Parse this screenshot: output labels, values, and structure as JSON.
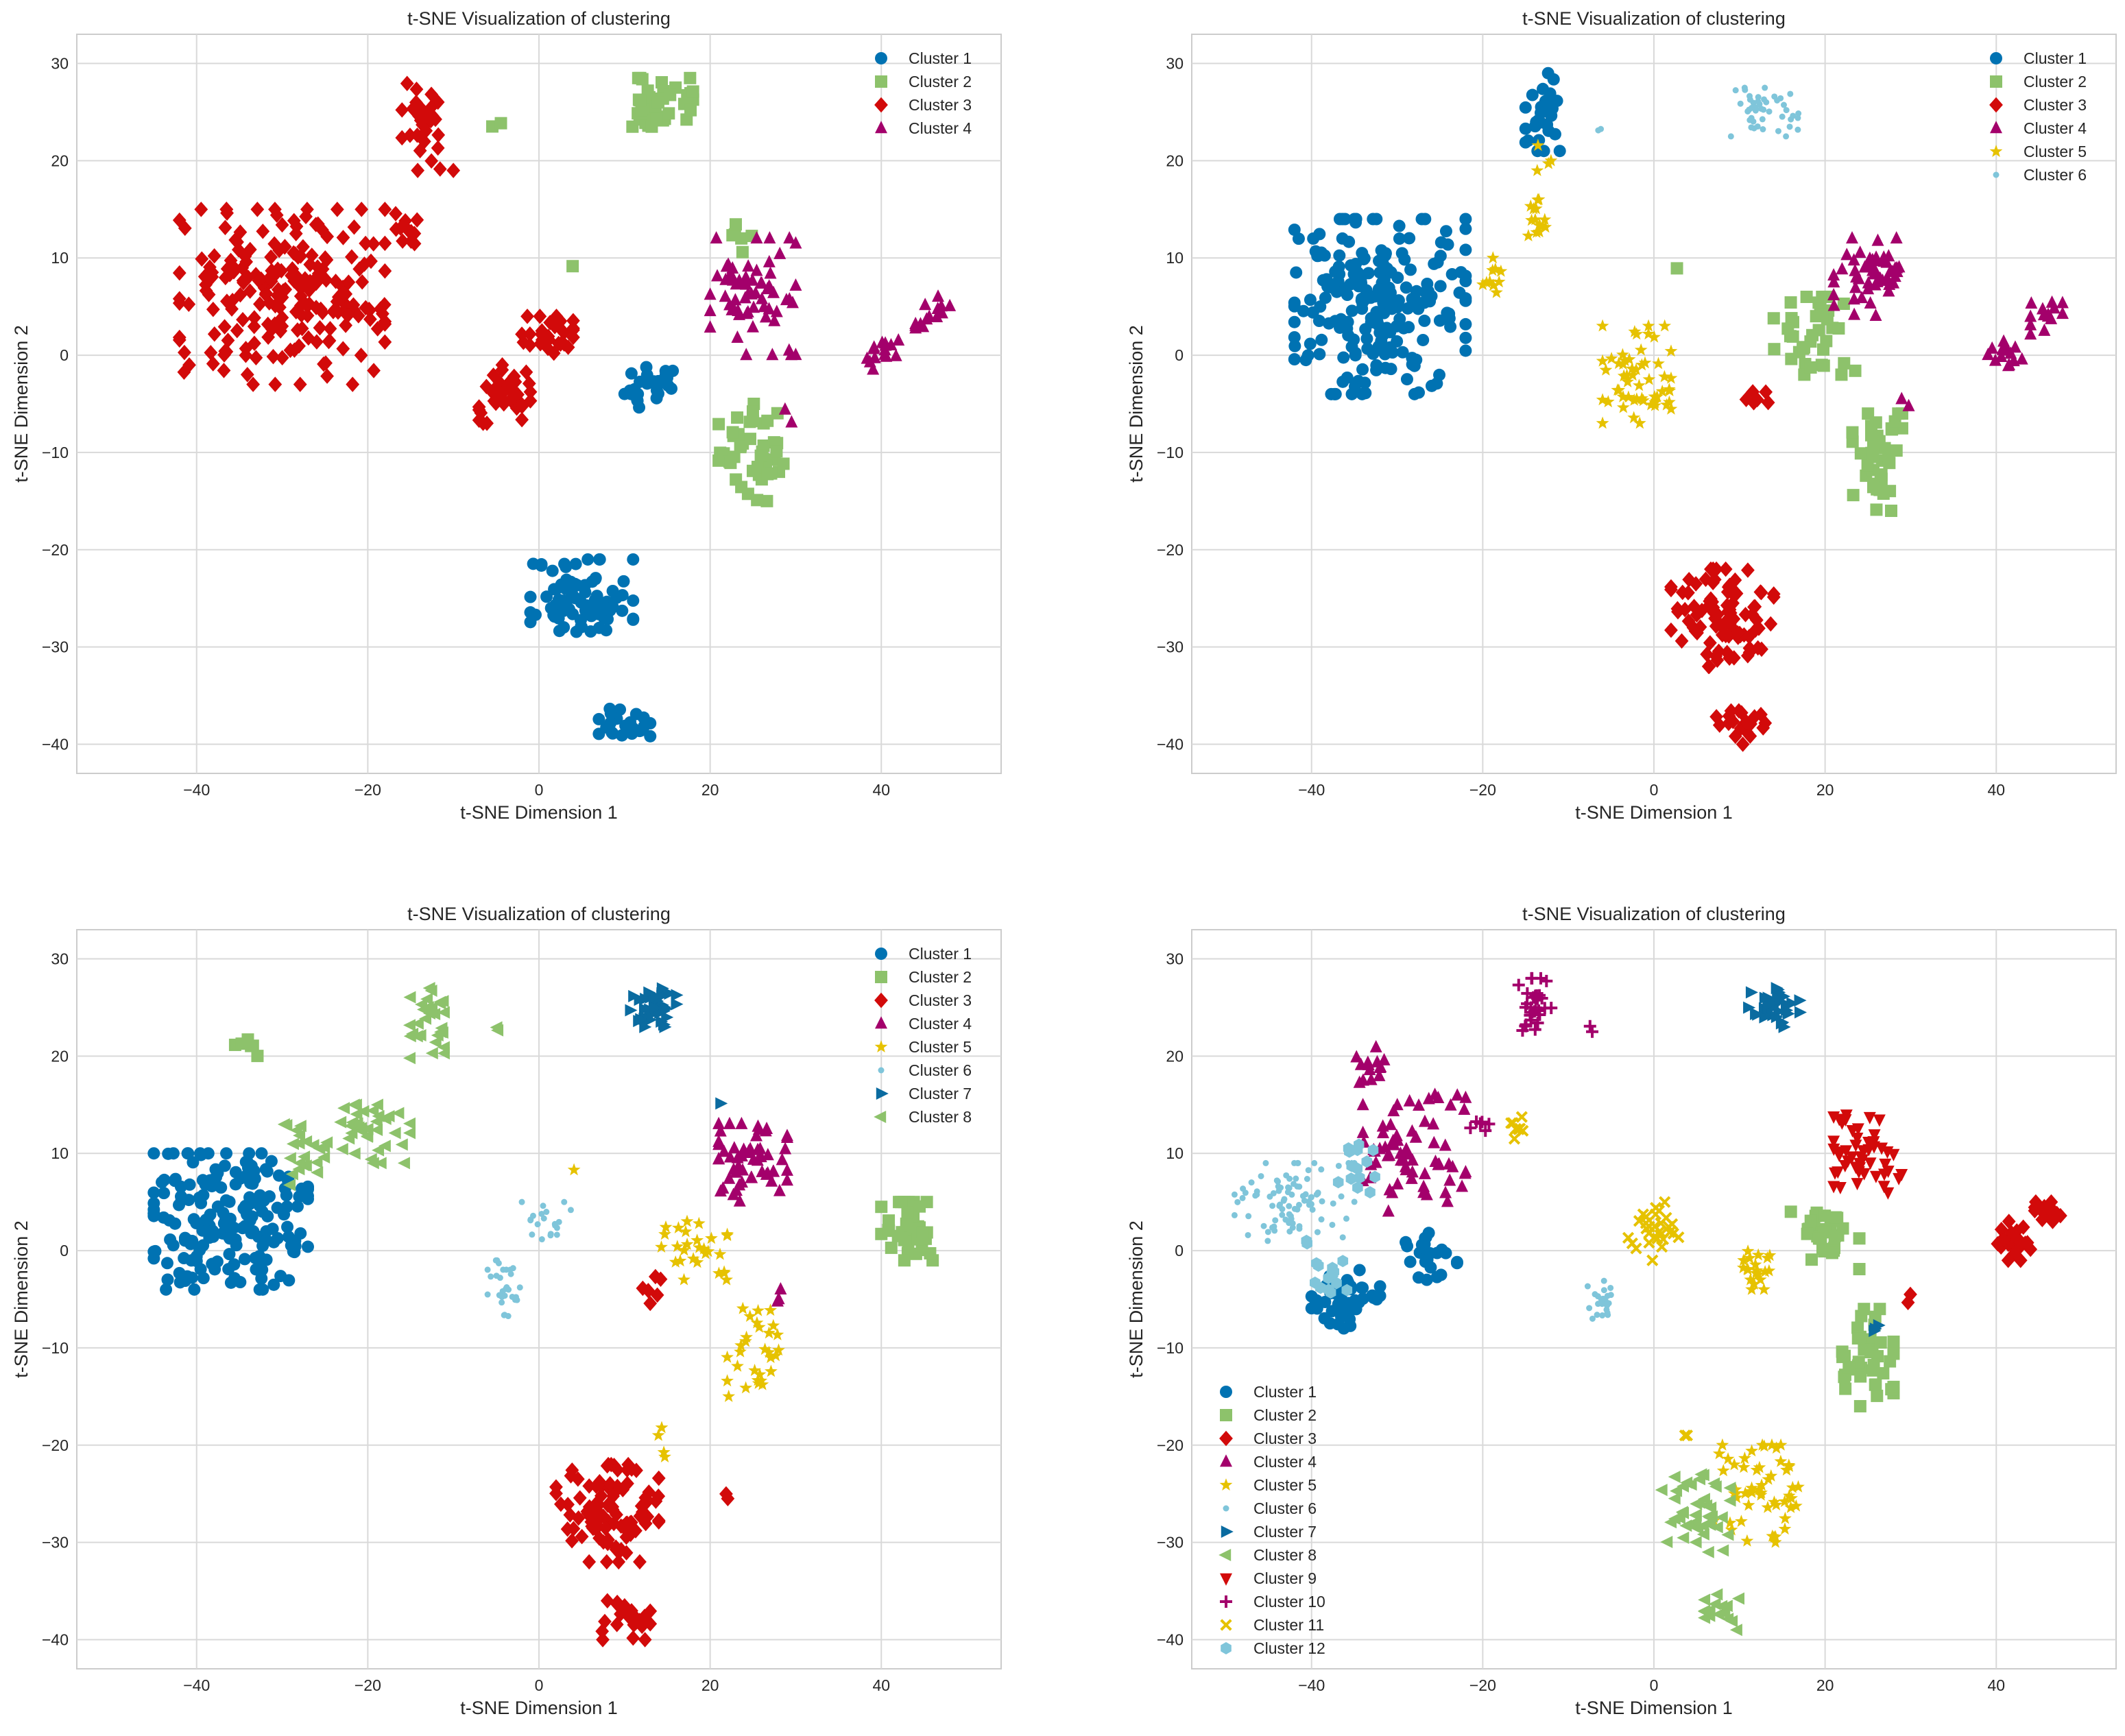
{
  "figure": {
    "description_layout": "2x2 grid of t-SNE scatter plots"
  },
  "palette": {
    "Cluster 1": "#0072B2",
    "Cluster 2": "#8DC26B",
    "Cluster 3": "#D20A0A",
    "Cluster 4": "#A3006B",
    "Cluster 5": "#E6C200",
    "Cluster 6": "#7FC5DA",
    "Cluster 7": "#0A6BA0",
    "Cluster 8": "#8DC26B",
    "Cluster 9": "#D20A0A",
    "Cluster 10": "#A3006B",
    "Cluster 11": "#E6C200",
    "Cluster 12": "#7FC5DA"
  },
  "chart_data": [
    {
      "type": "scatter",
      "title": "t-SNE Visualization of clustering",
      "xlabel": "t-SNE Dimension 1",
      "ylabel": "t-SNE Dimension 2",
      "xlim": [
        -54,
        54
      ],
      "ylim": [
        -43,
        33
      ],
      "xticks": [
        -40,
        -20,
        0,
        20,
        40
      ],
      "yticks": [
        -40,
        -30,
        -20,
        -10,
        0,
        10,
        20,
        30
      ],
      "xtick_labels": [
        "−40",
        "−20",
        "0",
        "20",
        "40"
      ],
      "ytick_labels": [
        "−40",
        "−30",
        "−20",
        "−10",
        "0",
        "10",
        "20",
        "30"
      ],
      "grid": true,
      "legend_position": "top-right",
      "series": [
        {
          "name": "Cluster 1",
          "marker": "circle",
          "color": "#0072B2",
          "clusters": [
            [
              13,
              -3,
              3,
              2.5,
              25
            ],
            [
              5,
              -25,
              6,
              4,
              80
            ],
            [
              10,
              -38,
              3,
              2,
              22
            ]
          ]
        },
        {
          "name": "Cluster 2",
          "marker": "square",
          "color": "#8DC26B",
          "clusters": [
            [
              14,
              26,
              4,
              2.5,
              45
            ],
            [
              25,
              -10,
              4,
              5,
              45
            ],
            [
              24,
              12,
              3,
              2,
              6
            ],
            [
              -5,
              24,
              1,
              0.5,
              2
            ],
            [
              4,
              9,
              0.5,
              0.5,
              1
            ]
          ]
        },
        {
          "name": "Cluster 3",
          "marker": "diamond",
          "color": "#D20A0A",
          "clusters": [
            [
              -30,
              6,
              12,
              9,
              220
            ],
            [
              -13,
              24,
              3,
              5,
              30
            ],
            [
              -4,
              -4,
              3,
              3,
              40
            ],
            [
              1,
              2,
              3,
              2,
              30
            ],
            [
              -15,
              13,
              2,
              2,
              12
            ]
          ]
        },
        {
          "name": "Cluster 4",
          "marker": "triangle-up",
          "color": "#A3006B",
          "clusters": [
            [
              25,
              6,
              5,
              6,
              65
            ],
            [
              40,
              0,
              2,
              1.5,
              15
            ],
            [
              46,
              4,
              2,
              2,
              14
            ],
            [
              29,
              -6,
              1,
              1,
              2
            ]
          ]
        }
      ]
    },
    {
      "type": "scatter",
      "title": "t-SNE Visualization of clustering",
      "xlabel": "t-SNE Dimension 1",
      "ylabel": "t-SNE Dimension 2",
      "xlim": [
        -54,
        54
      ],
      "ylim": [
        -43,
        33
      ],
      "xticks": [
        -40,
        -20,
        0,
        20,
        40
      ],
      "yticks": [
        -40,
        -30,
        -20,
        -10,
        0,
        10,
        20,
        30
      ],
      "xtick_labels": [
        "−40",
        "−20",
        "0",
        "20",
        "40"
      ],
      "ytick_labels": [
        "−40",
        "−30",
        "−20",
        "−10",
        "0",
        "10",
        "20",
        "30"
      ],
      "grid": true,
      "legend_position": "top-right",
      "series": [
        {
          "name": "Cluster 1",
          "marker": "circle",
          "color": "#0072B2",
          "clusters": [
            [
              -32,
              5,
              10,
              9,
              210
            ],
            [
              -13,
              25,
              2,
              4,
              28
            ]
          ]
        },
        {
          "name": "Cluster 2",
          "marker": "square",
          "color": "#8DC26B",
          "clusters": [
            [
              19,
              2,
              5,
              4,
              40
            ],
            [
              26,
              -11,
              3,
              5,
              40
            ],
            [
              3,
              9,
              0.5,
              0.5,
              1
            ]
          ]
        },
        {
          "name": "Cluster 3",
          "marker": "diamond",
          "color": "#D20A0A",
          "clusters": [
            [
              8,
              -27,
              6,
              5,
              95
            ],
            [
              10,
              -38,
              3,
              2,
              22
            ],
            [
              12,
              -4,
              1.5,
              1.5,
              6
            ]
          ]
        },
        {
          "name": "Cluster 4",
          "marker": "triangle-up",
          "color": "#A3006B",
          "clusters": [
            [
              25,
              8,
              4,
              4,
              55
            ],
            [
              41,
              0,
              2,
              1.5,
              15
            ],
            [
              46,
              4,
              2,
              2,
              14
            ],
            [
              29,
              -5,
              1,
              1,
              2
            ]
          ]
        },
        {
          "name": "Cluster 5",
          "marker": "star",
          "color": "#E6C200",
          "clusters": [
            [
              -2,
              -2,
              4,
              5,
              55
            ],
            [
              -14,
              14,
              2,
              2,
              14
            ],
            [
              -18,
              7,
              2,
              3,
              10
            ],
            [
              -13,
              20,
              1,
              2,
              4
            ]
          ]
        },
        {
          "name": "Cluster 6",
          "marker": "dot",
          "color": "#7FC5DA",
          "clusters": [
            [
              13,
              25,
              4,
              2.5,
              45
            ],
            [
              -6,
              23,
              0.5,
              0.5,
              2
            ]
          ]
        }
      ]
    },
    {
      "type": "scatter",
      "title": "t-SNE Visualization of clustering",
      "xlabel": "t-SNE Dimension 1",
      "ylabel": "t-SNE Dimension 2",
      "xlim": [
        -54,
        54
      ],
      "ylim": [
        -43,
        33
      ],
      "xticks": [
        -40,
        -20,
        0,
        20,
        40
      ],
      "yticks": [
        -40,
        -30,
        -20,
        -10,
        0,
        10,
        20,
        30
      ],
      "xtick_labels": [
        "−40",
        "−20",
        "0",
        "20",
        "40"
      ],
      "ytick_labels": [
        "−40",
        "−30",
        "−20",
        "−10",
        "0",
        "10",
        "20",
        "30"
      ],
      "grid": true,
      "legend_position": "top-right",
      "series": [
        {
          "name": "Cluster 1",
          "marker": "circle",
          "color": "#0072B2",
          "clusters": [
            [
              -36,
              3,
              9,
              7,
              190
            ]
          ]
        },
        {
          "name": "Cluster 2",
          "marker": "square",
          "color": "#8DC26B",
          "clusters": [
            [
              43,
              2,
              3,
              3,
              40
            ],
            [
              -34,
              21,
              1.5,
              1,
              6
            ]
          ]
        },
        {
          "name": "Cluster 3",
          "marker": "diamond",
          "color": "#D20A0A",
          "clusters": [
            [
              8,
              -27,
              6,
              5,
              95
            ],
            [
              10,
              -38,
              3,
              2,
              22
            ],
            [
              13,
              -4,
              1.5,
              1.5,
              6
            ],
            [
              22,
              -25,
              0.5,
              0.5,
              2
            ]
          ]
        },
        {
          "name": "Cluster 4",
          "marker": "triangle-up",
          "color": "#A3006B",
          "clusters": [
            [
              25,
              9,
              4,
              4,
              55
            ],
            [
              28,
              -5,
              1,
              1,
              3
            ]
          ]
        },
        {
          "name": "Cluster 5",
          "marker": "star",
          "color": "#E6C200",
          "clusters": [
            [
              18,
              0,
              4,
              3,
              28
            ],
            [
              25,
              -10,
              3,
              5,
              30
            ],
            [
              14,
              -20,
              1,
              2,
              4
            ],
            [
              4,
              8,
              0.5,
              0.5,
              1
            ]
          ]
        },
        {
          "name": "Cluster 6",
          "marker": "dot",
          "color": "#7FC5DA",
          "clusters": [
            [
              -4,
              -4,
              2,
              3,
              30
            ],
            [
              1,
              3,
              3,
              2,
              20
            ]
          ]
        },
        {
          "name": "Cluster 7",
          "marker": "triangle-right",
          "color": "#0A6BA0",
          "clusters": [
            [
              13,
              25,
              3,
              2,
              40
            ],
            [
              21,
              15,
              0.5,
              0.5,
              1
            ]
          ]
        },
        {
          "name": "Cluster 8",
          "marker": "triangle-left",
          "color": "#8DC26B",
          "clusters": [
            [
              -13,
              23,
              2,
              4,
              30
            ],
            [
              -20,
              12,
              5,
              3,
              40
            ],
            [
              -28,
              10,
              3,
              4,
              20
            ],
            [
              -5,
              23,
              0.5,
              0.5,
              2
            ]
          ]
        }
      ]
    },
    {
      "type": "scatter",
      "title": "t-SNE Visualization of clustering",
      "xlabel": "t-SNE Dimension 1",
      "ylabel": "t-SNE Dimension 2",
      "xlim": [
        -54,
        54
      ],
      "ylim": [
        -43,
        33
      ],
      "xticks": [
        -40,
        -20,
        0,
        20,
        40
      ],
      "yticks": [
        -40,
        -30,
        -20,
        -10,
        0,
        10,
        20,
        30
      ],
      "xtick_labels": [
        "−40",
        "−20",
        "0",
        "20",
        "40"
      ],
      "ytick_labels": [
        "−40",
        "−30",
        "−20",
        "−10",
        "0",
        "10",
        "20",
        "30"
      ],
      "grid": true,
      "legend_position": "bottom-left",
      "series": [
        {
          "name": "Cluster 1",
          "marker": "circle",
          "color": "#0072B2",
          "clusters": [
            [
              -36,
              -5,
              4,
              3,
              50
            ],
            [
              -26,
              0,
              3,
              3,
              24
            ]
          ]
        },
        {
          "name": "Cluster 2",
          "marker": "square",
          "color": "#8DC26B",
          "clusters": [
            [
              20,
              1,
              4,
              3,
              30
            ],
            [
              25,
              -11,
              3,
              5,
              40
            ]
          ]
        },
        {
          "name": "Cluster 3",
          "marker": "diamond",
          "color": "#D20A0A",
          "clusters": [
            [
              42,
              1,
              2,
              2,
              30
            ],
            [
              46,
              4,
              1.5,
              1,
              18
            ],
            [
              30,
              -5,
              0.5,
              0.5,
              2
            ]
          ]
        },
        {
          "name": "Cluster 4",
          "marker": "triangle-up",
          "color": "#A3006B",
          "clusters": [
            [
              -28,
              10,
              6,
              6,
              70
            ],
            [
              -33,
              19,
              2,
              2,
              14
            ]
          ]
        },
        {
          "name": "Cluster 5",
          "marker": "star",
          "color": "#E6C200",
          "clusters": [
            [
              12,
              -25,
              5,
              5,
              55
            ],
            [
              12,
              -2,
              2,
              2,
              20
            ]
          ]
        },
        {
          "name": "Cluster 6",
          "marker": "dot",
          "color": "#7FC5DA",
          "clusters": [
            [
              -42,
              5,
              7,
              4,
              90
            ],
            [
              -6,
              -5,
              2,
              2,
              22
            ]
          ]
        },
        {
          "name": "Cluster 7",
          "marker": "triangle-right",
          "color": "#0A6BA0",
          "clusters": [
            [
              14,
              25,
              3,
              2,
              40
            ],
            [
              26,
              -8,
              1,
              0.5,
              3
            ]
          ]
        },
        {
          "name": "Cluster 8",
          "marker": "triangle-left",
          "color": "#8DC26B",
          "clusters": [
            [
              5,
              -27,
              4,
              4,
              45
            ],
            [
              8,
              -37,
              2,
              2,
              16
            ]
          ]
        },
        {
          "name": "Cluster 9",
          "marker": "triangle-down",
          "color": "#D20A0A",
          "clusters": [
            [
              25,
              10,
              4,
              4,
              50
            ]
          ]
        },
        {
          "name": "Cluster 10",
          "marker": "plus",
          "color": "#A3006B",
          "clusters": [
            [
              -14,
              25,
              2,
              3,
              30
            ],
            [
              -20,
              13,
              1.5,
              1,
              6
            ],
            [
              -7,
              23,
              0.5,
              0.5,
              2
            ]
          ]
        },
        {
          "name": "Cluster 11",
          "marker": "x",
          "color": "#E6C200",
          "clusters": [
            [
              0,
              2,
              3,
              3,
              30
            ],
            [
              -16,
              13,
              1.5,
              1.5,
              8
            ],
            [
              4,
              -19,
              0.5,
              0.5,
              2
            ]
          ]
        },
        {
          "name": "Cluster 12",
          "marker": "hexagon",
          "color": "#7FC5DA",
          "clusters": [
            [
              -35,
              9,
              3,
              3,
              14
            ],
            [
              -38,
              -2,
              3,
              3,
              16
            ]
          ]
        }
      ]
    }
  ]
}
